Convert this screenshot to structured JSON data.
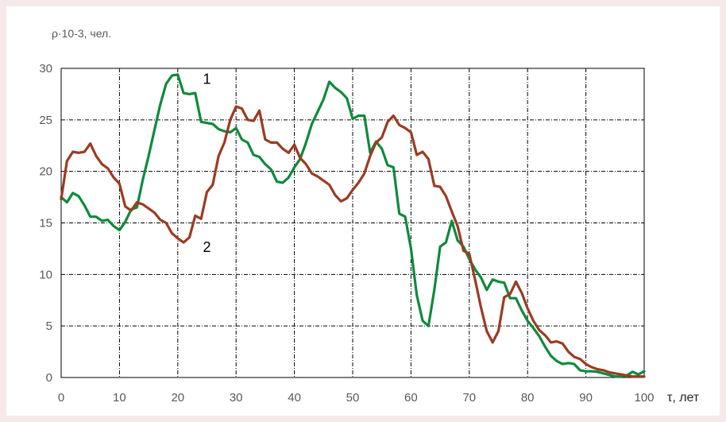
{
  "chart_data": {
    "type": "line",
    "ylabel": "ρ·10-3, чел.",
    "xlabel": "τ, лет",
    "xlim": [
      0,
      100
    ],
    "ylim": [
      0,
      30
    ],
    "xticks": [
      0,
      10,
      20,
      30,
      40,
      50,
      60,
      70,
      80,
      90,
      100
    ],
    "yticks": [
      0,
      5,
      10,
      15,
      20,
      25,
      30
    ],
    "grid": true,
    "curve_labels": [
      {
        "text": "1",
        "series": 0,
        "at": [
          25,
          28.5
        ]
      },
      {
        "text": "2",
        "series": 1,
        "at": [
          25,
          12.2
        ]
      }
    ],
    "series": [
      {
        "color": "#0f8a3c",
        "points": [
          [
            0,
            17.5
          ],
          [
            1,
            17
          ],
          [
            2,
            17.9
          ],
          [
            3,
            17.6
          ],
          [
            4,
            16.7
          ],
          [
            5,
            15.6
          ],
          [
            6,
            15.6
          ],
          [
            7,
            15.2
          ],
          [
            8,
            15.3
          ],
          [
            9,
            14.7
          ],
          [
            10,
            14.3
          ],
          [
            11,
            15.1
          ],
          [
            12,
            16.3
          ],
          [
            13,
            16.5
          ],
          [
            14,
            19.2
          ],
          [
            15,
            21.5
          ],
          [
            16,
            24
          ],
          [
            17,
            26.5
          ],
          [
            18,
            28.5
          ],
          [
            19,
            29.3
          ],
          [
            20,
            29.4
          ],
          [
            21,
            27.6
          ],
          [
            22,
            27.5
          ],
          [
            23,
            27.6
          ],
          [
            24,
            24.8
          ],
          [
            25,
            24.7
          ],
          [
            26,
            24.6
          ],
          [
            27,
            24.1
          ],
          [
            28,
            23.9
          ],
          [
            29,
            23.8
          ],
          [
            30,
            24.2
          ],
          [
            31,
            23.1
          ],
          [
            32,
            22.8
          ],
          [
            33,
            21.6
          ],
          [
            34,
            21.4
          ],
          [
            35,
            20.7
          ],
          [
            36,
            20.2
          ],
          [
            37,
            19
          ],
          [
            38,
            18.9
          ],
          [
            39,
            19.4
          ],
          [
            40,
            20.4
          ],
          [
            41,
            21.2
          ],
          [
            42,
            22.8
          ],
          [
            43,
            24.6
          ],
          [
            44,
            25.8
          ],
          [
            45,
            27
          ],
          [
            46,
            28.7
          ],
          [
            47,
            28.1
          ],
          [
            48,
            27.7
          ],
          [
            49,
            27.1
          ],
          [
            50,
            25.1
          ],
          [
            51,
            25.4
          ],
          [
            52,
            25.4
          ],
          [
            53,
            21.8
          ],
          [
            54,
            22.9
          ],
          [
            55,
            22.2
          ],
          [
            56,
            20.6
          ],
          [
            57,
            20.4
          ],
          [
            58,
            15.9
          ],
          [
            59,
            15.6
          ],
          [
            60,
            12.5
          ],
          [
            61,
            8
          ],
          [
            62,
            5.5
          ],
          [
            63,
            5
          ],
          [
            64,
            8.5
          ],
          [
            65,
            12.7
          ],
          [
            66,
            13.1
          ],
          [
            67,
            15.2
          ],
          [
            68,
            13.3
          ],
          [
            69,
            12.7
          ],
          [
            70,
            11.5
          ],
          [
            71,
            10.5
          ],
          [
            72,
            9.7
          ],
          [
            73,
            8.5
          ],
          [
            74,
            9.5
          ],
          [
            75,
            9.3
          ],
          [
            76,
            9.2
          ],
          [
            77,
            7.7
          ],
          [
            78,
            7.7
          ],
          [
            79,
            6.5
          ],
          [
            80,
            5.5
          ],
          [
            81,
            4.8
          ],
          [
            82,
            4
          ],
          [
            83,
            3
          ],
          [
            84,
            2.1
          ],
          [
            85,
            1.6
          ],
          [
            86,
            1.3
          ],
          [
            87,
            1.4
          ],
          [
            88,
            1.3
          ],
          [
            89,
            0.7
          ],
          [
            90,
            0.6
          ],
          [
            91,
            0.6
          ],
          [
            92,
            0.55
          ],
          [
            93,
            0.4
          ],
          [
            94,
            0.25
          ],
          [
            95,
            0.1
          ],
          [
            96,
            0.1
          ],
          [
            97,
            0.2
          ],
          [
            98,
            0.55
          ],
          [
            99,
            0.3
          ],
          [
            100,
            0.6
          ]
        ]
      },
      {
        "color": "#9b3b22",
        "points": [
          [
            0,
            17.3
          ],
          [
            1,
            21
          ],
          [
            2,
            21.9
          ],
          [
            3,
            21.8
          ],
          [
            4,
            21.9
          ],
          [
            5,
            22.7
          ],
          [
            6,
            21.5
          ],
          [
            7,
            20.7
          ],
          [
            8,
            20.3
          ],
          [
            9,
            19.4
          ],
          [
            10,
            18.8
          ],
          [
            11,
            16.6
          ],
          [
            12,
            16.2
          ],
          [
            13,
            17
          ],
          [
            14,
            16.8
          ],
          [
            15,
            16.4
          ],
          [
            16,
            16
          ],
          [
            17,
            15.3
          ],
          [
            18,
            15
          ],
          [
            19,
            14
          ],
          [
            20,
            13.5
          ],
          [
            21,
            13.1
          ],
          [
            22,
            13.6
          ],
          [
            23,
            15.7
          ],
          [
            24,
            15.4
          ],
          [
            25,
            18
          ],
          [
            26,
            18.7
          ],
          [
            27,
            21.5
          ],
          [
            28,
            22.8
          ],
          [
            29,
            25
          ],
          [
            30,
            26.3
          ],
          [
            31,
            26.1
          ],
          [
            32,
            25
          ],
          [
            33,
            24.9
          ],
          [
            34,
            25.9
          ],
          [
            35,
            23.1
          ],
          [
            36,
            22.8
          ],
          [
            37,
            22.8
          ],
          [
            38,
            22.2
          ],
          [
            39,
            21.8
          ],
          [
            40,
            22.6
          ],
          [
            41,
            21.3
          ],
          [
            42,
            20.7
          ],
          [
            43,
            19.8
          ],
          [
            44,
            19.5
          ],
          [
            45,
            19.1
          ],
          [
            46,
            18.7
          ],
          [
            47,
            17.7
          ],
          [
            48,
            17.1
          ],
          [
            49,
            17.4
          ],
          [
            50,
            18.2
          ],
          [
            51,
            18.9
          ],
          [
            52,
            19.8
          ],
          [
            53,
            21.5
          ],
          [
            54,
            22.8
          ],
          [
            55,
            23.3
          ],
          [
            56,
            24.8
          ],
          [
            57,
            25.4
          ],
          [
            58,
            24.5
          ],
          [
            59,
            24.2
          ],
          [
            60,
            23.8
          ],
          [
            61,
            21.6
          ],
          [
            62,
            21.9
          ],
          [
            63,
            21.2
          ],
          [
            64,
            18.6
          ],
          [
            65,
            18.5
          ],
          [
            66,
            17.6
          ],
          [
            67,
            16.1
          ],
          [
            68,
            14.7
          ],
          [
            69,
            12.3
          ],
          [
            70,
            12
          ],
          [
            71,
            9.5
          ],
          [
            72,
            6.8
          ],
          [
            73,
            4.5
          ],
          [
            74,
            3.4
          ],
          [
            75,
            4.5
          ],
          [
            76,
            7.8
          ],
          [
            77,
            8.1
          ],
          [
            78,
            9.3
          ],
          [
            79,
            8.2
          ],
          [
            80,
            6.7
          ],
          [
            81,
            5.5
          ],
          [
            82,
            4.6
          ],
          [
            83,
            4.1
          ],
          [
            84,
            3.4
          ],
          [
            85,
            3.5
          ],
          [
            86,
            3.3
          ],
          [
            87,
            2.5
          ],
          [
            88,
            2
          ],
          [
            89,
            1.8
          ],
          [
            90,
            1.3
          ],
          [
            91,
            1
          ],
          [
            92,
            0.8
          ],
          [
            93,
            0.7
          ],
          [
            94,
            0.5
          ],
          [
            95,
            0.4
          ],
          [
            96,
            0.3
          ],
          [
            97,
            0.2
          ],
          [
            98,
            0.1
          ],
          [
            99,
            0.1
          ],
          [
            100,
            0.1
          ]
        ]
      }
    ]
  }
}
